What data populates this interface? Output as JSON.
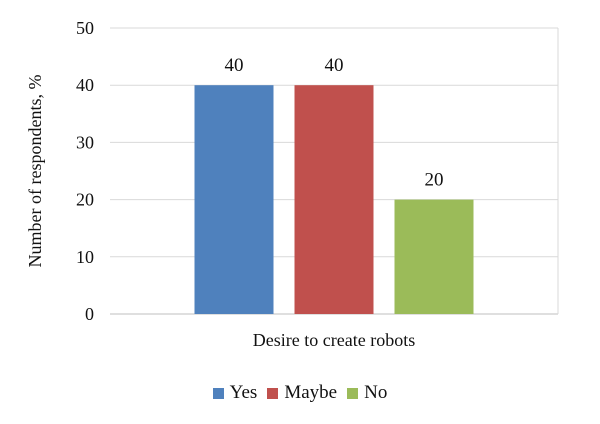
{
  "chart_data": {
    "type": "bar",
    "categories": [
      "Desire to create robots"
    ],
    "series": [
      {
        "name": "Yes",
        "values": [
          40
        ],
        "color": "#4f81bd"
      },
      {
        "name": "Maybe",
        "values": [
          40
        ],
        "color": "#c0504d"
      },
      {
        "name": "No",
        "values": [
          20
        ],
        "color": "#9bbb59"
      }
    ],
    "xlabel": "Desire to create robots",
    "ylabel": "Number of respondents, %",
    "ylim": [
      0,
      50
    ],
    "yticks": [
      0,
      10,
      20,
      30,
      40,
      50
    ],
    "data_labels": [
      "40",
      "40",
      "20"
    ],
    "grid": true,
    "legend": {
      "placement": "bottom",
      "items": [
        "Yes",
        "Maybe",
        "No"
      ]
    }
  }
}
